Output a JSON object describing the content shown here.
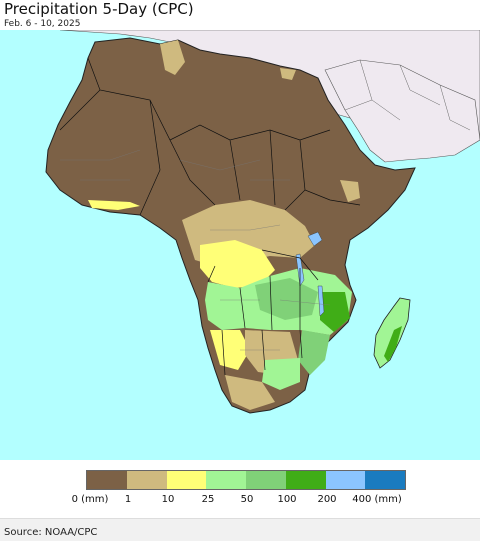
{
  "title": "Precipitation 5-Day (CPC)",
  "subtitle": "Feb. 6 - 10, 2025",
  "legend": {
    "colors": [
      "#7c6146",
      "#cfba7f",
      "#ffff77",
      "#a1f595",
      "#80d178",
      "#40ad17",
      "#8bc5ff",
      "#1a7bbf"
    ],
    "ticks": [
      "0 (mm)",
      "1",
      "10",
      "25",
      "50",
      "100",
      "200",
      "400 (mm)"
    ]
  },
  "colors": {
    "ocean": "#b3ffff",
    "land_outside": "#efe9f0",
    "dry": "#7c6146",
    "light": "#cfba7f",
    "moderate": "#ffff77",
    "wet": "#a1f595",
    "wetter": "#80d178",
    "heavy": "#40ad17",
    "lake": "#8bc5ff"
  },
  "footer": {
    "source": "Source: NOAA/CPC"
  }
}
